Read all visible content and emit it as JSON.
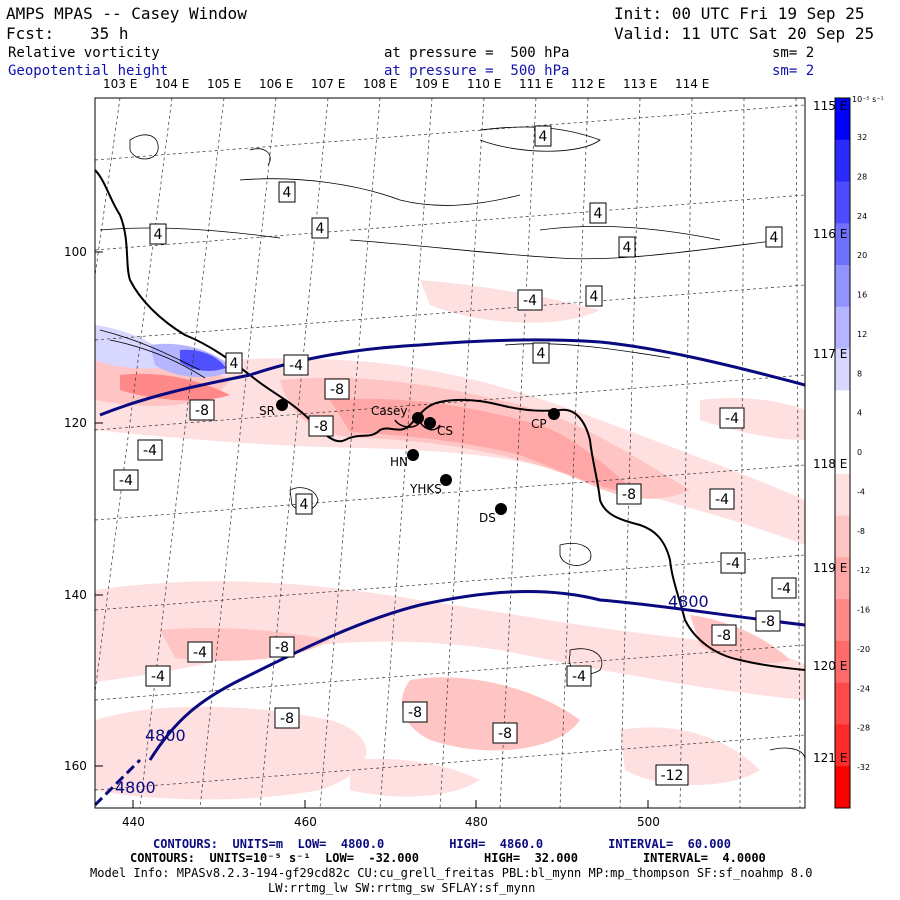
{
  "header": {
    "title": "AMPS MPAS -- Casey Window",
    "init": "Init: 00 UTC Fri 19 Sep 25",
    "fcst_label": "Fcst:",
    "fcst_value": "35 h",
    "valid": "Valid: 11 UTC Sat 20 Sep 25",
    "field1": "Relative vorticity",
    "field1_level": "at pressure =  500 hPa",
    "field1_sm": "sm= 2",
    "field2": "Geopotential height",
    "field2_level": "at pressure =  500 hPa",
    "field2_sm": "sm= 2"
  },
  "map": {
    "lon_top_labels": [
      "103 E",
      "104 E",
      "105 E",
      "106 E",
      "107 E",
      "108 E",
      "109 E",
      "110 E",
      "111 E",
      "112 E",
      "113 E",
      "114 E"
    ],
    "lon_right_labels": [
      "115 E",
      "116 E",
      "117 E",
      "118 E",
      "119 E",
      "120 E",
      "121 E"
    ],
    "x_ticks": [
      "440",
      "460",
      "480",
      "500"
    ],
    "y_ticks": [
      "100",
      "120",
      "140",
      "160"
    ],
    "stations": [
      {
        "name": "SR",
        "show": "SR"
      },
      {
        "name": "Casey",
        "show": "Casey"
      },
      {
        "name": "CS",
        "show": "CS"
      },
      {
        "name": "HN",
        "show": "HN"
      },
      {
        "name": "YHKS",
        "show": "YHKS"
      },
      {
        "name": "DS",
        "show": "DS"
      },
      {
        "name": "CP",
        "show": "CP"
      }
    ],
    "vort_labels": [
      "4",
      "4",
      "4",
      "4",
      "4",
      "4",
      "4",
      "4",
      "4",
      "4",
      "4",
      "-4",
      "-4",
      "-4",
      "-4",
      "-4",
      "-4",
      "-4",
      "-4",
      "-8",
      "-8",
      "-8",
      "-8",
      "-8",
      "-8",
      "-8",
      "-8",
      "-8",
      "-8",
      "-12",
      "-4",
      "-4",
      "-4"
    ],
    "height_labels": [
      "4800",
      "4800",
      "4800"
    ]
  },
  "colorbar": {
    "units": "10⁻⁵ s⁻¹",
    "ticks": [
      "32",
      "28",
      "24",
      "20",
      "16",
      "12",
      "8",
      "4",
      "0",
      "-4",
      "-8",
      "-12",
      "-16",
      "-20",
      "-24",
      "-28",
      "-32"
    ],
    "colors": [
      "#0000ff",
      "#2a2aff",
      "#4d4dff",
      "#7070ff",
      "#9393ff",
      "#b5b5ff",
      "#d7d7ff",
      "#ffffff",
      "#ffffff",
      "#ffe0e0",
      "#ffc4c4",
      "#ffa7a7",
      "#ff8888",
      "#ff6a6a",
      "#ff4a4a",
      "#ff2a2a",
      "#ff0000"
    ]
  },
  "footer": {
    "line1": "CONTOURS:  UNITS=m  LOW=  4800.0         HIGH=  4860.0         INTERVAL=  60.000",
    "line2": "CONTOURS:  UNITS=10⁻⁵ s⁻¹  LOW=  -32.000         HIGH=  32.000         INTERVAL=  4.0000",
    "line3": "Model Info: MPASv8.2.3-194-gf29cd82c CU:cu_grell_freitas PBL:bl_mynn MP:mp_thompson SF:sf_noahmp 8.0",
    "line4": "LW:rrtmg_lw SW:rrtmg_sw SFLAY:sf_mynn"
  }
}
